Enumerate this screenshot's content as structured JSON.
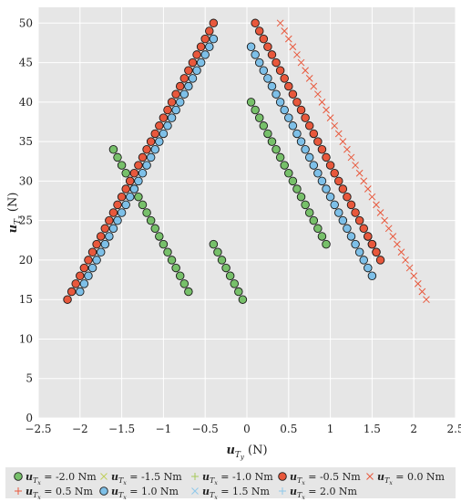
{
  "chart_data": {
    "type": "scatter",
    "title": "",
    "xlabel": "u_{T_y} (N)",
    "ylabel": "u_{T_z} (N)",
    "xlabel_text": {
      "main": "u",
      "sub": "T",
      "subsub": "y",
      "unit": "(N)"
    },
    "ylabel_text": {
      "main": "u",
      "sub": "T",
      "subsub": "z",
      "unit": "(N)"
    },
    "xlim": [
      -2.5,
      2.5
    ],
    "ylim": [
      0,
      52
    ],
    "xticks": [
      -2.5,
      -2,
      -1.5,
      -1,
      -0.5,
      0,
      0.5,
      1,
      1.5,
      2,
      2.5
    ],
    "xtick_labels": [
      "−2.5",
      "−2",
      "−1.5",
      "−1",
      "−0.5",
      "0",
      "0.5",
      "1",
      "1.5",
      "2",
      "2.5"
    ],
    "yticks": [
      0,
      5,
      10,
      15,
      20,
      25,
      30,
      35,
      40,
      45,
      50
    ],
    "ytick_labels": [
      "0",
      "5",
      "10",
      "15",
      "20",
      "25",
      "30",
      "35",
      "40",
      "45",
      "50"
    ],
    "grid": true,
    "legend_position": "bottom",
    "series": [
      {
        "name": "u_{T_x} = -2.0 Nm",
        "label_value": "= -2.0 Nm",
        "marker": "circle",
        "color": "#77c06a",
        "points": [
          [
            -1.6,
            34
          ],
          [
            -1.55,
            33
          ],
          [
            -1.5,
            32
          ],
          [
            -1.45,
            31
          ],
          [
            -1.4,
            30
          ],
          [
            -1.35,
            29
          ],
          [
            -1.3,
            28
          ],
          [
            -1.25,
            27
          ],
          [
            -1.2,
            26
          ],
          [
            -1.15,
            25
          ],
          [
            -1.1,
            24
          ],
          [
            -1.05,
            23
          ],
          [
            -1,
            22
          ],
          [
            -0.95,
            21
          ],
          [
            -0.9,
            20
          ],
          [
            -0.85,
            19
          ],
          [
            -0.8,
            18
          ],
          [
            -0.75,
            17
          ],
          [
            -0.7,
            16
          ],
          [
            -0.05,
            15
          ],
          [
            -0.1,
            16
          ],
          [
            -0.15,
            17
          ],
          [
            -0.2,
            18
          ],
          [
            -0.25,
            19
          ],
          [
            -0.3,
            20
          ],
          [
            -0.35,
            21
          ],
          [
            -0.4,
            22
          ],
          [
            0.05,
            40
          ],
          [
            0.1,
            39
          ],
          [
            0.15,
            38
          ],
          [
            0.2,
            37
          ],
          [
            0.25,
            36
          ],
          [
            0.3,
            35
          ],
          [
            0.35,
            34
          ],
          [
            0.4,
            33
          ],
          [
            0.45,
            32
          ],
          [
            0.5,
            31
          ],
          [
            0.55,
            30
          ],
          [
            0.6,
            29
          ],
          [
            0.65,
            28
          ],
          [
            0.7,
            27
          ],
          [
            0.75,
            26
          ],
          [
            0.8,
            25
          ],
          [
            0.85,
            24
          ],
          [
            0.9,
            23
          ],
          [
            0.95,
            22
          ],
          [
            1.55,
            21
          ],
          [
            1.5,
            22
          ],
          [
            1.45,
            23
          ]
        ]
      },
      {
        "name": "u_{T_x} = -1.5 Nm",
        "label_value": "= -1.5 Nm",
        "marker": "x",
        "color": "#bfcf5a",
        "points": []
      },
      {
        "name": "u_{T_x} = -1.0 Nm",
        "label_value": "= -1.0 Nm",
        "marker": "plus",
        "color": "#a7c95a",
        "points": []
      },
      {
        "name": "u_{T_x} = -0.5 Nm",
        "label_value": "= -0.5 Nm",
        "marker": "circle",
        "color": "#e8583c",
        "points": [
          [
            -0.4,
            50
          ],
          [
            -0.45,
            49
          ],
          [
            -0.5,
            48
          ],
          [
            -0.55,
            47
          ],
          [
            -0.6,
            46
          ],
          [
            -0.65,
            45
          ],
          [
            -0.7,
            44
          ],
          [
            -0.75,
            43
          ],
          [
            -0.8,
            42
          ],
          [
            -0.85,
            41
          ],
          [
            -0.9,
            40
          ],
          [
            -0.95,
            39
          ],
          [
            -1,
            38
          ],
          [
            -1.05,
            37
          ],
          [
            -1.1,
            36
          ],
          [
            -1.15,
            35
          ],
          [
            -1.2,
            34
          ],
          [
            -1.25,
            33
          ],
          [
            -1.3,
            32
          ],
          [
            -1.35,
            31
          ],
          [
            -1.4,
            30
          ],
          [
            -1.45,
            29
          ],
          [
            -1.5,
            28
          ],
          [
            -1.55,
            27
          ],
          [
            -1.6,
            26
          ],
          [
            -1.65,
            25
          ],
          [
            -1.7,
            24
          ],
          [
            -1.75,
            23
          ],
          [
            -1.8,
            22
          ],
          [
            -1.85,
            21
          ],
          [
            -1.9,
            20
          ],
          [
            -1.95,
            19
          ],
          [
            -2,
            18
          ],
          [
            -2.05,
            17
          ],
          [
            -2.1,
            16
          ],
          [
            -2.15,
            15
          ],
          [
            0.1,
            50
          ],
          [
            0.15,
            49
          ],
          [
            0.2,
            48
          ],
          [
            0.25,
            47
          ],
          [
            0.3,
            46
          ],
          [
            0.35,
            45
          ],
          [
            0.4,
            44
          ],
          [
            0.45,
            43
          ],
          [
            0.5,
            42
          ],
          [
            0.55,
            41
          ],
          [
            0.6,
            40
          ],
          [
            0.65,
            39
          ],
          [
            0.7,
            38
          ],
          [
            0.75,
            37
          ],
          [
            0.8,
            36
          ],
          [
            0.85,
            35
          ],
          [
            0.9,
            34
          ],
          [
            0.95,
            33
          ],
          [
            1,
            32
          ],
          [
            1.05,
            31
          ],
          [
            1.1,
            30
          ],
          [
            1.15,
            29
          ],
          [
            1.2,
            28
          ],
          [
            1.25,
            27
          ],
          [
            1.3,
            26
          ],
          [
            1.35,
            25
          ],
          [
            1.4,
            24
          ],
          [
            1.45,
            23
          ],
          [
            1.5,
            22
          ],
          [
            1.55,
            21
          ],
          [
            1.6,
            20
          ]
        ]
      },
      {
        "name": "u_{T_x} = 0.0 Nm",
        "label_value": "= 0.0 Nm",
        "marker": "x",
        "color": "#e8583c",
        "points": [
          [
            0.4,
            50
          ],
          [
            0.45,
            49
          ],
          [
            0.5,
            48
          ],
          [
            0.55,
            47
          ],
          [
            0.6,
            46
          ],
          [
            0.65,
            45
          ],
          [
            0.7,
            44
          ],
          [
            0.75,
            43
          ],
          [
            0.8,
            42
          ],
          [
            0.85,
            41
          ],
          [
            0.9,
            40
          ],
          [
            0.95,
            39
          ],
          [
            1,
            38
          ],
          [
            1.05,
            37
          ],
          [
            1.1,
            36
          ],
          [
            1.15,
            35
          ],
          [
            1.2,
            34
          ],
          [
            1.25,
            33
          ],
          [
            1.3,
            32
          ],
          [
            1.35,
            31
          ],
          [
            1.4,
            30
          ],
          [
            1.45,
            29
          ],
          [
            1.5,
            28
          ],
          [
            1.55,
            27
          ],
          [
            1.6,
            26
          ],
          [
            1.65,
            25
          ],
          [
            1.7,
            24
          ],
          [
            1.75,
            23
          ],
          [
            1.8,
            22
          ],
          [
            1.85,
            21
          ],
          [
            1.9,
            20
          ],
          [
            1.95,
            19
          ],
          [
            2,
            18
          ],
          [
            2.05,
            17
          ],
          [
            2.1,
            16
          ],
          [
            2.15,
            15
          ]
        ]
      },
      {
        "name": "u_{T_x} = 0.5 Nm",
        "label_value": "= 0.5 Nm",
        "marker": "plus",
        "color": "#e8583c",
        "points": []
      },
      {
        "name": "u_{T_x} = 1.0 Nm",
        "label_value": "= 1.0 Nm",
        "marker": "circle",
        "color": "#7ec0e8",
        "points": [
          [
            -0.4,
            48
          ],
          [
            -0.45,
            47
          ],
          [
            -0.5,
            46
          ],
          [
            -0.55,
            45
          ],
          [
            -0.6,
            44
          ],
          [
            -0.65,
            43
          ],
          [
            -0.7,
            42
          ],
          [
            -0.75,
            41
          ],
          [
            -0.8,
            40
          ],
          [
            -0.85,
            39
          ],
          [
            -0.9,
            38
          ],
          [
            -0.95,
            37
          ],
          [
            -1,
            36
          ],
          [
            -1.05,
            35
          ],
          [
            -1.1,
            34
          ],
          [
            -1.15,
            33
          ],
          [
            -1.2,
            32
          ],
          [
            -1.25,
            31
          ],
          [
            -1.3,
            30
          ],
          [
            -1.35,
            29
          ],
          [
            -1.4,
            28
          ],
          [
            -1.45,
            27
          ],
          [
            -1.5,
            26
          ],
          [
            -1.55,
            25
          ],
          [
            -1.6,
            24
          ],
          [
            -1.65,
            23
          ],
          [
            -1.7,
            22
          ],
          [
            -1.75,
            21
          ],
          [
            -1.8,
            20
          ],
          [
            -1.85,
            19
          ],
          [
            -1.9,
            18
          ],
          [
            -1.95,
            17
          ],
          [
            -2,
            16
          ],
          [
            0.05,
            47
          ],
          [
            0.1,
            46
          ],
          [
            0.15,
            45
          ],
          [
            0.2,
            44
          ],
          [
            0.25,
            43
          ],
          [
            0.3,
            42
          ],
          [
            0.35,
            41
          ],
          [
            0.4,
            40
          ],
          [
            0.45,
            39
          ],
          [
            0.5,
            38
          ],
          [
            0.55,
            37
          ],
          [
            0.6,
            36
          ],
          [
            0.65,
            35
          ],
          [
            0.7,
            34
          ],
          [
            0.75,
            33
          ],
          [
            0.8,
            32
          ],
          [
            0.85,
            31
          ],
          [
            0.9,
            30
          ],
          [
            0.95,
            29
          ],
          [
            1,
            28
          ],
          [
            1.05,
            27
          ],
          [
            1.1,
            26
          ],
          [
            1.15,
            25
          ],
          [
            1.2,
            24
          ],
          [
            1.25,
            23
          ],
          [
            1.3,
            22
          ],
          [
            1.35,
            21
          ],
          [
            1.4,
            20
          ],
          [
            1.45,
            19
          ],
          [
            1.5,
            18
          ]
        ]
      },
      {
        "name": "u_{T_x} = 1.5 Nm",
        "label_value": "= 1.5 Nm",
        "marker": "x",
        "color": "#8ec8ea",
        "points": []
      },
      {
        "name": "u_{T_x} = 2.0 Nm",
        "label_value": "= 2.0 Nm",
        "marker": "plus",
        "color": "#8ec8ea",
        "points": []
      }
    ],
    "legend_prefix": {
      "main": "u",
      "sub": "T",
      "subsub": "x"
    }
  }
}
